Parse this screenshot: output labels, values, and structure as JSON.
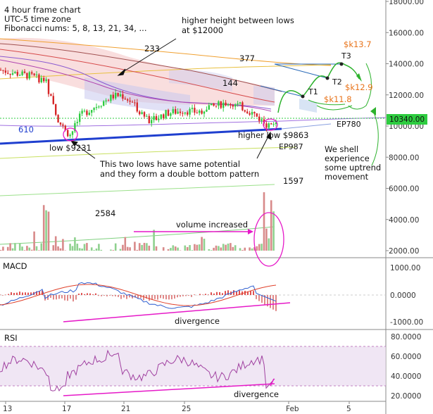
{
  "chart_data": {
    "type": "candlestick",
    "price_axis": {
      "ticks": [
        "18000.00",
        "16000.00",
        "14000.00",
        "12000.00",
        "10000.00",
        "8000.00",
        "6000.00",
        "4000.00",
        "2000.00"
      ],
      "current_price_label": "10340.00",
      "current_price": 10340
    },
    "time_axis": {
      "ticks": [
        "13",
        "17",
        "21",
        "25",
        "Feb",
        "5"
      ]
    },
    "notes": {
      "timeframe": "4 hour frame chart",
      "timezone": "UTC-5 time zone",
      "fibonacci": "Fibonacci nums: 5, 8, 13, 21, 34, ..."
    },
    "annotations": {
      "higher_height": "higher height between lows",
      "higher_height_price": "at $12000",
      "low_1": "low $9231",
      "low_2": "higher low $9863",
      "double_bottom_line1": "This two lows have same potential",
      "double_bottom_line2": "and they form a double bottom pattern",
      "volume": "volume increased",
      "uptrend_line1": "We shell",
      "uptrend_line2": "experience",
      "uptrend_line3": "some uptrend",
      "uptrend_line4": "movement"
    },
    "fib_labels": [
      "233",
      "377",
      "144",
      "610",
      "1597",
      "2584"
    ],
    "ep_labels": [
      "EP780",
      "EP987"
    ],
    "targets": [
      {
        "name": "T1",
        "price_label": "$k11.8",
        "price": 11800
      },
      {
        "name": "T2",
        "price_label": "$k12.9",
        "price": 12900
      },
      {
        "name": "T3",
        "price_label": "$k13.7",
        "price": 13700
      }
    ],
    "key_lows": [
      9231,
      9863
    ],
    "volume_axis_note": "volume shares price scale",
    "macd": {
      "title": "MACD",
      "ticks": [
        "1000.00",
        "0.0000",
        "-1000.00"
      ],
      "divergence_label": "divergence"
    },
    "rsi": {
      "title": "RSI",
      "ticks": [
        "80.0000",
        "60.0000",
        "40.0000",
        "20.0000"
      ],
      "divergence_label": "divergence"
    }
  },
  "colors": {
    "up": "#2ecc40",
    "down": "#d62728",
    "vol_up": "#8fd18f",
    "vol_down": "#d88a8a",
    "cloud": "#f4c2c2",
    "trend_blue": "#1f3fcf",
    "magenta": "#e619c8",
    "target_orange": "#e8731a",
    "arrow_green": "#2db22d",
    "rsi_band": "#eadcf0"
  }
}
